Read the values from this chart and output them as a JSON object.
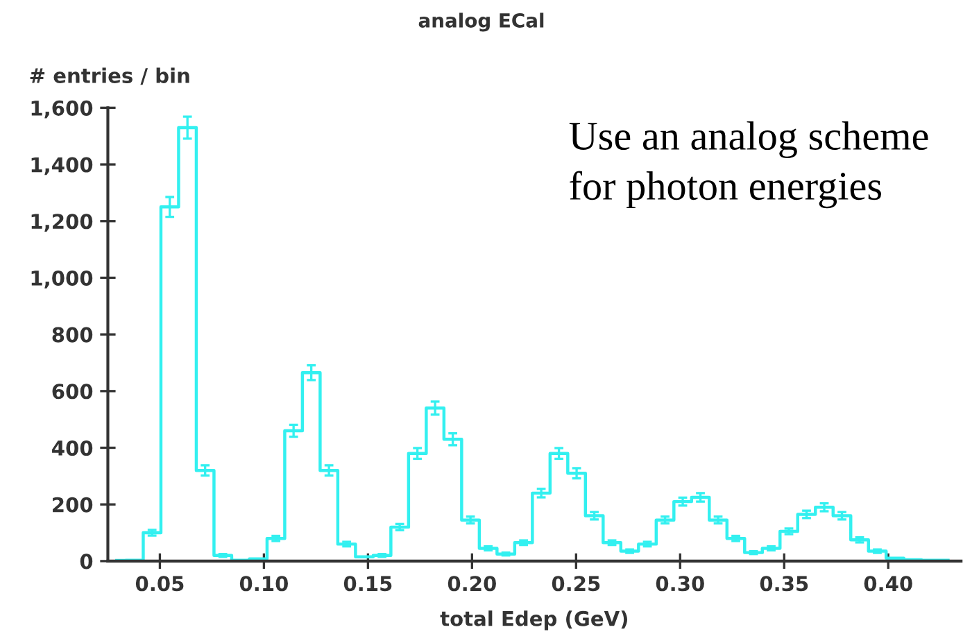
{
  "chart_data": {
    "type": "step",
    "title": "analog ECal",
    "xlabel": "total Edep (GeV)",
    "ylabel": "# entries / bin",
    "annotations": [
      "Use an analog scheme\nfor photon energies"
    ],
    "color": "#33f0f0",
    "x": [
      0.02925,
      0.03775,
      0.04625,
      0.05475,
      0.06325,
      0.07175,
      0.08025,
      0.08875,
      0.09725,
      0.10575,
      0.11425,
      0.12275,
      0.13125,
      0.13975,
      0.14825,
      0.15675,
      0.16525,
      0.17375,
      0.18225,
      0.19075,
      0.19925,
      0.20775,
      0.21625,
      0.22475,
      0.23325,
      0.24175,
      0.25025,
      0.25875,
      0.26725,
      0.27575,
      0.28425,
      0.29275,
      0.30125,
      0.30975,
      0.31825,
      0.32675,
      0.33525,
      0.34375,
      0.35225,
      0.36075,
      0.36925,
      0.37775,
      0.38625,
      0.39475,
      0.40325,
      0.41175,
      0.42025,
      0.42875
    ],
    "values": [
      2,
      3,
      100,
      1250,
      1530,
      320,
      20,
      3,
      8,
      80,
      460,
      665,
      320,
      60,
      15,
      20,
      120,
      380,
      540,
      430,
      145,
      45,
      25,
      65,
      240,
      380,
      310,
      160,
      65,
      35,
      60,
      145,
      210,
      225,
      145,
      80,
      30,
      45,
      105,
      165,
      190,
      160,
      75,
      35,
      10,
      5,
      3,
      3
    ],
    "errors": [
      null,
      null,
      10,
      35,
      39,
      18,
      5,
      null,
      null,
      9,
      21,
      26,
      18,
      8,
      null,
      5,
      11,
      19,
      23,
      21,
      12,
      7,
      5,
      8,
      15,
      19,
      18,
      13,
      8,
      6,
      8,
      12,
      14,
      15,
      12,
      9,
      5,
      7,
      10,
      13,
      14,
      13,
      9,
      6,
      null,
      null,
      null,
      null
    ],
    "xlim": [
      0.025,
      0.435
    ],
    "ylim": [
      0,
      1600
    ],
    "xticks": [
      {
        "value": 0.05,
        "label": "0.05"
      },
      {
        "value": 0.1,
        "label": "0.10"
      },
      {
        "value": 0.15,
        "label": "0.15"
      },
      {
        "value": 0.2,
        "label": "0.20"
      },
      {
        "value": 0.25,
        "label": "0.25"
      },
      {
        "value": 0.3,
        "label": "0.30"
      },
      {
        "value": 0.35,
        "label": "0.35"
      },
      {
        "value": 0.4,
        "label": "0.40"
      }
    ],
    "yticks": [
      0,
      200,
      400,
      600,
      800,
      {
        "value": 1000,
        "label": "1,000"
      },
      {
        "value": 1200,
        "label": "1,200"
      },
      {
        "value": 1400,
        "label": "1,400"
      },
      {
        "value": 1600,
        "label": "1,600"
      }
    ],
    "grid": false,
    "legend": false
  }
}
